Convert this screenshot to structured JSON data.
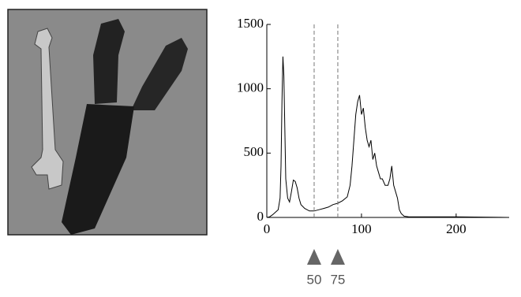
{
  "chart_data": {
    "type": "line",
    "x": [
      0,
      3,
      6,
      9,
      12,
      14,
      15,
      16,
      17,
      18,
      19,
      20,
      22,
      24,
      26,
      28,
      30,
      32,
      34,
      36,
      40,
      45,
      50,
      55,
      60,
      65,
      70,
      75,
      80,
      85,
      88,
      90,
      92,
      94,
      96,
      98,
      100,
      102,
      104,
      106,
      108,
      110,
      112,
      114,
      116,
      118,
      120,
      122,
      125,
      128,
      130,
      132,
      134,
      136,
      138,
      140,
      142,
      145,
      150,
      160,
      180,
      200,
      220,
      240,
      255
    ],
    "values": [
      0,
      5,
      20,
      40,
      60,
      150,
      400,
      900,
      1250,
      1100,
      700,
      300,
      150,
      120,
      200,
      290,
      280,
      230,
      150,
      100,
      70,
      50,
      50,
      60,
      70,
      80,
      100,
      110,
      130,
      160,
      250,
      400,
      600,
      800,
      900,
      950,
      800,
      850,
      700,
      600,
      550,
      600,
      450,
      500,
      400,
      350,
      300,
      300,
      250,
      250,
      300,
      400,
      250,
      200,
      150,
      60,
      30,
      10,
      5,
      5,
      5,
      5,
      3,
      2,
      0
    ],
    "color": "#000000",
    "xlim": [
      0,
      256
    ],
    "ylim": [
      0,
      1500
    ],
    "xticks": [
      0,
      100,
      200
    ],
    "yticks": [
      0,
      500,
      1000,
      1500
    ],
    "thresholds": [
      50,
      75
    ]
  }
}
